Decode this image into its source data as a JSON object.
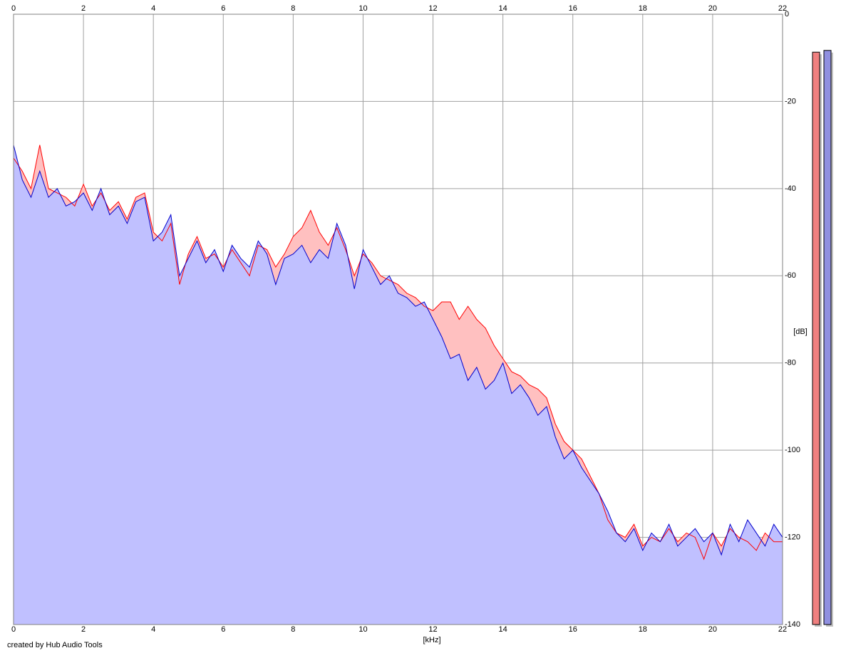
{
  "chart_data": {
    "type": "line",
    "x_label": "[kHz]",
    "y_label": "[dB]",
    "credit": "created by Hub Audio Tools",
    "xlim": [
      0,
      22
    ],
    "xticks": [
      0,
      2,
      4,
      6,
      8,
      10,
      12,
      14,
      16,
      18,
      20,
      22
    ],
    "ylim": [
      -140,
      0
    ],
    "yticks": [
      0,
      -20,
      -40,
      -60,
      -80,
      -100,
      -120,
      -140
    ],
    "grid": true,
    "x": [
      0,
      0.25,
      0.5,
      0.75,
      1,
      1.25,
      1.5,
      1.75,
      2,
      2.25,
      2.5,
      2.75,
      3,
      3.25,
      3.5,
      3.75,
      4,
      4.25,
      4.5,
      4.75,
      5,
      5.25,
      5.5,
      5.75,
      6,
      6.25,
      6.5,
      6.75,
      7,
      7.25,
      7.5,
      7.75,
      8,
      8.25,
      8.5,
      8.75,
      9,
      9.25,
      9.5,
      9.75,
      10,
      10.25,
      10.5,
      10.75,
      11,
      11.25,
      11.5,
      11.75,
      12,
      12.25,
      12.5,
      12.75,
      13,
      13.25,
      13.5,
      13.75,
      14,
      14.25,
      14.5,
      14.75,
      15,
      15.25,
      15.5,
      15.75,
      16,
      16.25,
      16.5,
      16.75,
      17,
      17.25,
      17.5,
      17.75,
      18,
      18.25,
      18.5,
      18.75,
      19,
      19.25,
      19.5,
      19.75,
      20,
      20.25,
      20.5,
      20.75,
      21,
      21.25,
      21.5,
      21.75,
      22
    ],
    "series": [
      {
        "color": "#ff0000",
        "fill": "#ffc0c0",
        "values": [
          -33,
          -36,
          -40,
          -30,
          -40,
          -41,
          -42,
          -44,
          -39,
          -44,
          -41,
          -45,
          -43,
          -47,
          -42,
          -41,
          -50,
          -52,
          -48,
          -62,
          -55,
          -51,
          -56,
          -55,
          -58,
          -54,
          -57,
          -60,
          -53,
          -54,
          -58,
          -55,
          -51,
          -49,
          -45,
          -50,
          -53,
          -49,
          -54,
          -60,
          -55,
          -57,
          -60,
          -61,
          -62,
          -64,
          -65,
          -67,
          -68,
          -66,
          -66,
          -70,
          -67,
          -70,
          -72,
          -76,
          -79,
          -82,
          -83,
          -85,
          -86,
          -88,
          -94,
          -98,
          -100,
          -102,
          -106,
          -110,
          -116,
          -119,
          -120,
          -117,
          -122,
          -120,
          -121,
          -118,
          -121,
          -119,
          -120,
          -125,
          -119,
          -122,
          -118,
          -120,
          -121,
          -123,
          -119,
          -121,
          -121
        ]
      },
      {
        "color": "#0000cc",
        "fill": "#c0c0ff",
        "values": [
          -30,
          -38,
          -42,
          -36,
          -42,
          -40,
          -44,
          -43,
          -41,
          -45,
          -40,
          -46,
          -44,
          -48,
          -43,
          -42,
          -52,
          -50,
          -46,
          -60,
          -56,
          -52,
          -57,
          -54,
          -59,
          -53,
          -56,
          -58,
          -52,
          -55,
          -62,
          -56,
          -55,
          -53,
          -57,
          -54,
          -56,
          -48,
          -53,
          -63,
          -54,
          -58,
          -62,
          -60,
          -64,
          -65,
          -67,
          -66,
          -70,
          -74,
          -79,
          -78,
          -84,
          -81,
          -86,
          -84,
          -80,
          -87,
          -85,
          -88,
          -92,
          -90,
          -97,
          -102,
          -100,
          -104,
          -107,
          -110,
          -114,
          -119,
          -121,
          -118,
          -123,
          -119,
          -121,
          -117,
          -122,
          -120,
          -118,
          -121,
          -119,
          -124,
          -117,
          -121,
          -116,
          -119,
          -122,
          -117,
          -120
        ]
      }
    ],
    "meters": [
      {
        "color": "#f08080",
        "value": -8.7
      },
      {
        "color": "#9090e0",
        "value": -8.3
      }
    ]
  }
}
